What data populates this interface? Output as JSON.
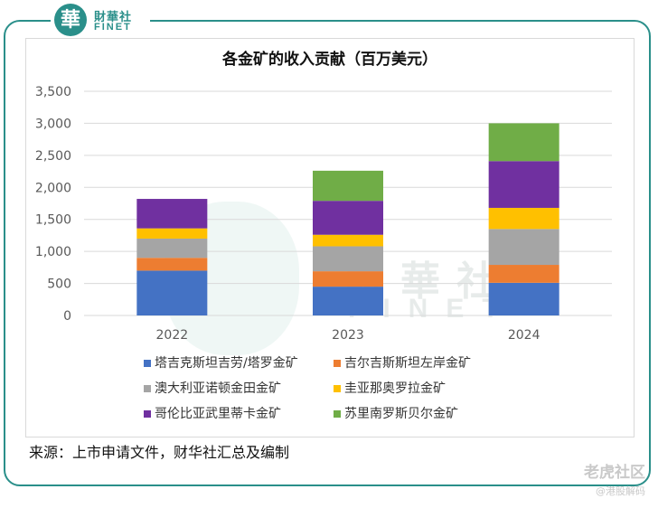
{
  "logo": {
    "badge": "華",
    "name_cn": "財華社",
    "name_en": "FINET"
  },
  "watermark": {
    "cn": "財華社",
    "en": "FINET",
    "right_cn": "老虎社区",
    "right_handle": "@港股解码"
  },
  "source_note": "来源：上市申请文件，财华社汇总及编制",
  "colors": {
    "teal": "#2a8f8a"
  },
  "chart_data": {
    "type": "bar",
    "stacked": true,
    "title": "各金矿的收入贡献（百万美元）",
    "categories": [
      "2022",
      "2023",
      "2024"
    ],
    "ylim": [
      0,
      3500
    ],
    "yticks": [
      0,
      500,
      1000,
      1500,
      2000,
      2500,
      3000,
      3500
    ],
    "ytick_labels": [
      "0",
      "500",
      "1,000",
      "1,500",
      "2,000",
      "2,500",
      "3,000",
      "3,500"
    ],
    "legend_position": "bottom",
    "series": [
      {
        "name": "塔吉克斯坦吉劳/塔罗金矿",
        "color": "#4472c4",
        "values": [
          700,
          450,
          510
        ]
      },
      {
        "name": "吉尔吉斯斯坦左岸金矿",
        "color": "#ed7d31",
        "values": [
          200,
          240,
          280
        ]
      },
      {
        "name": "澳大利亚诺顿金田金矿",
        "color": "#a5a5a5",
        "values": [
          300,
          390,
          560
        ]
      },
      {
        "name": "圭亚那奥罗拉金矿",
        "color": "#ffc000",
        "values": [
          160,
          180,
          330
        ]
      },
      {
        "name": "哥伦比亚武里蒂卡金矿",
        "color": "#7030a0",
        "values": [
          460,
          530,
          730
        ]
      },
      {
        "name": "苏里南罗斯贝尔金矿",
        "color": "#70ad47",
        "values": [
          0,
          470,
          590
        ]
      }
    ]
  }
}
